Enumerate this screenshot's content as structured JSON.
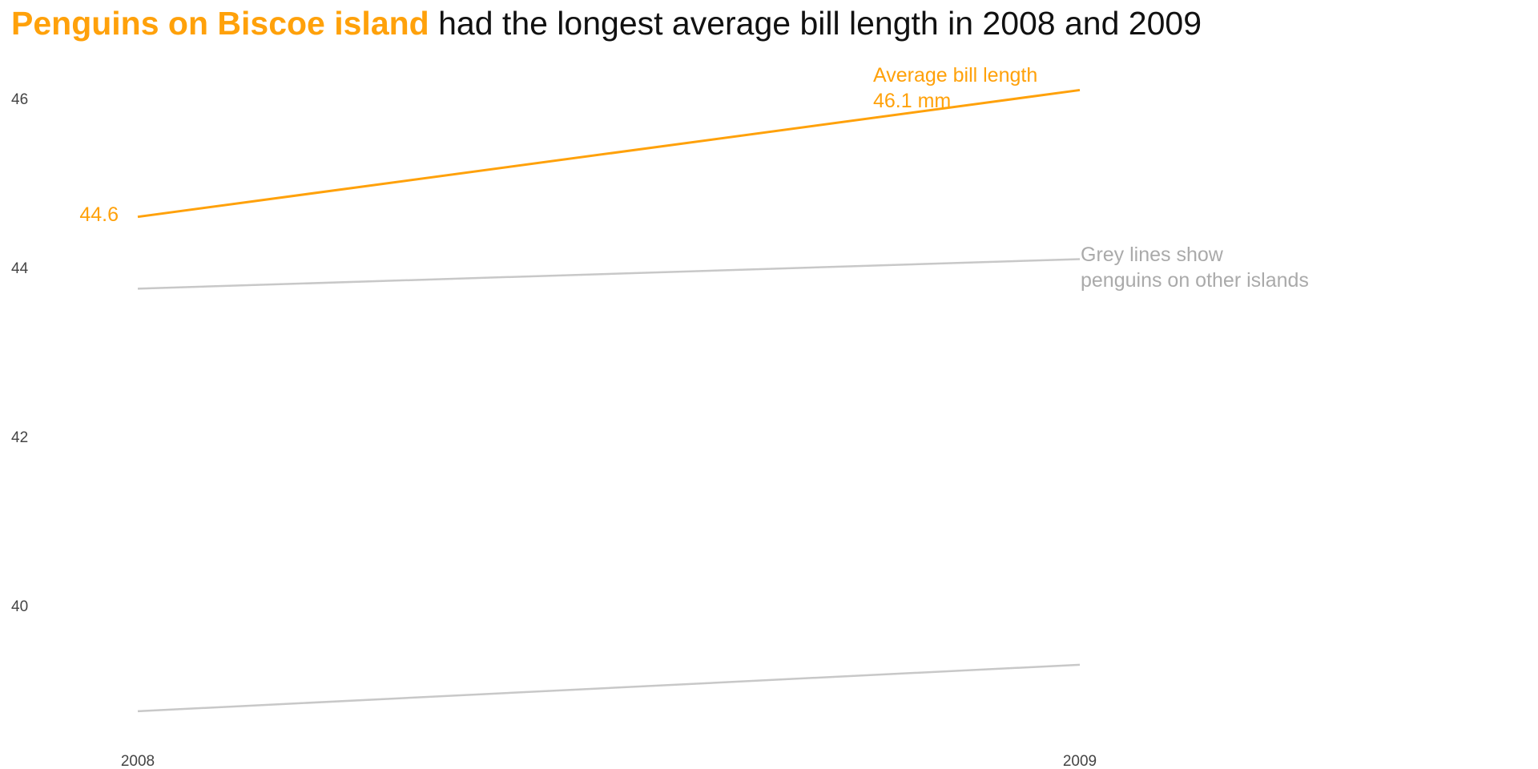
{
  "chart_data": {
    "type": "line",
    "title": {
      "highlight": "Penguins on Biscoe island",
      "rest": "had the longest average bill length in 2008 and 2009"
    },
    "xlabel": "",
    "ylabel": "",
    "x": [
      "2008",
      "2009"
    ],
    "xlim": [
      2008,
      2009
    ],
    "ylim": [
      38.5,
      46.5
    ],
    "yticks": [
      "40",
      "42",
      "44",
      "46"
    ],
    "grid": false,
    "series": [
      {
        "values": [
          44.6,
          46.1
        ],
        "color": "#FFA10A",
        "highlight": true
      },
      {
        "values": [
          43.75,
          44.1
        ],
        "color": "#C8C8C8",
        "highlight": false
      },
      {
        "values": [
          38.75,
          39.3
        ],
        "color": "#C8C8C8",
        "highlight": false
      }
    ],
    "annotations": {
      "start_label": "44.6",
      "highlight_label_line1": "Average bill length",
      "highlight_label_line2": "46.1 mm",
      "grey_label_line1": "Grey lines show",
      "grey_label_line2": "penguins on other islands"
    },
    "colors": {
      "highlight": "#FFA10A",
      "context": "#C8C8C8",
      "context_text": "#AAAAAA",
      "axis_text": "#444444",
      "title_text": "#111111"
    }
  }
}
